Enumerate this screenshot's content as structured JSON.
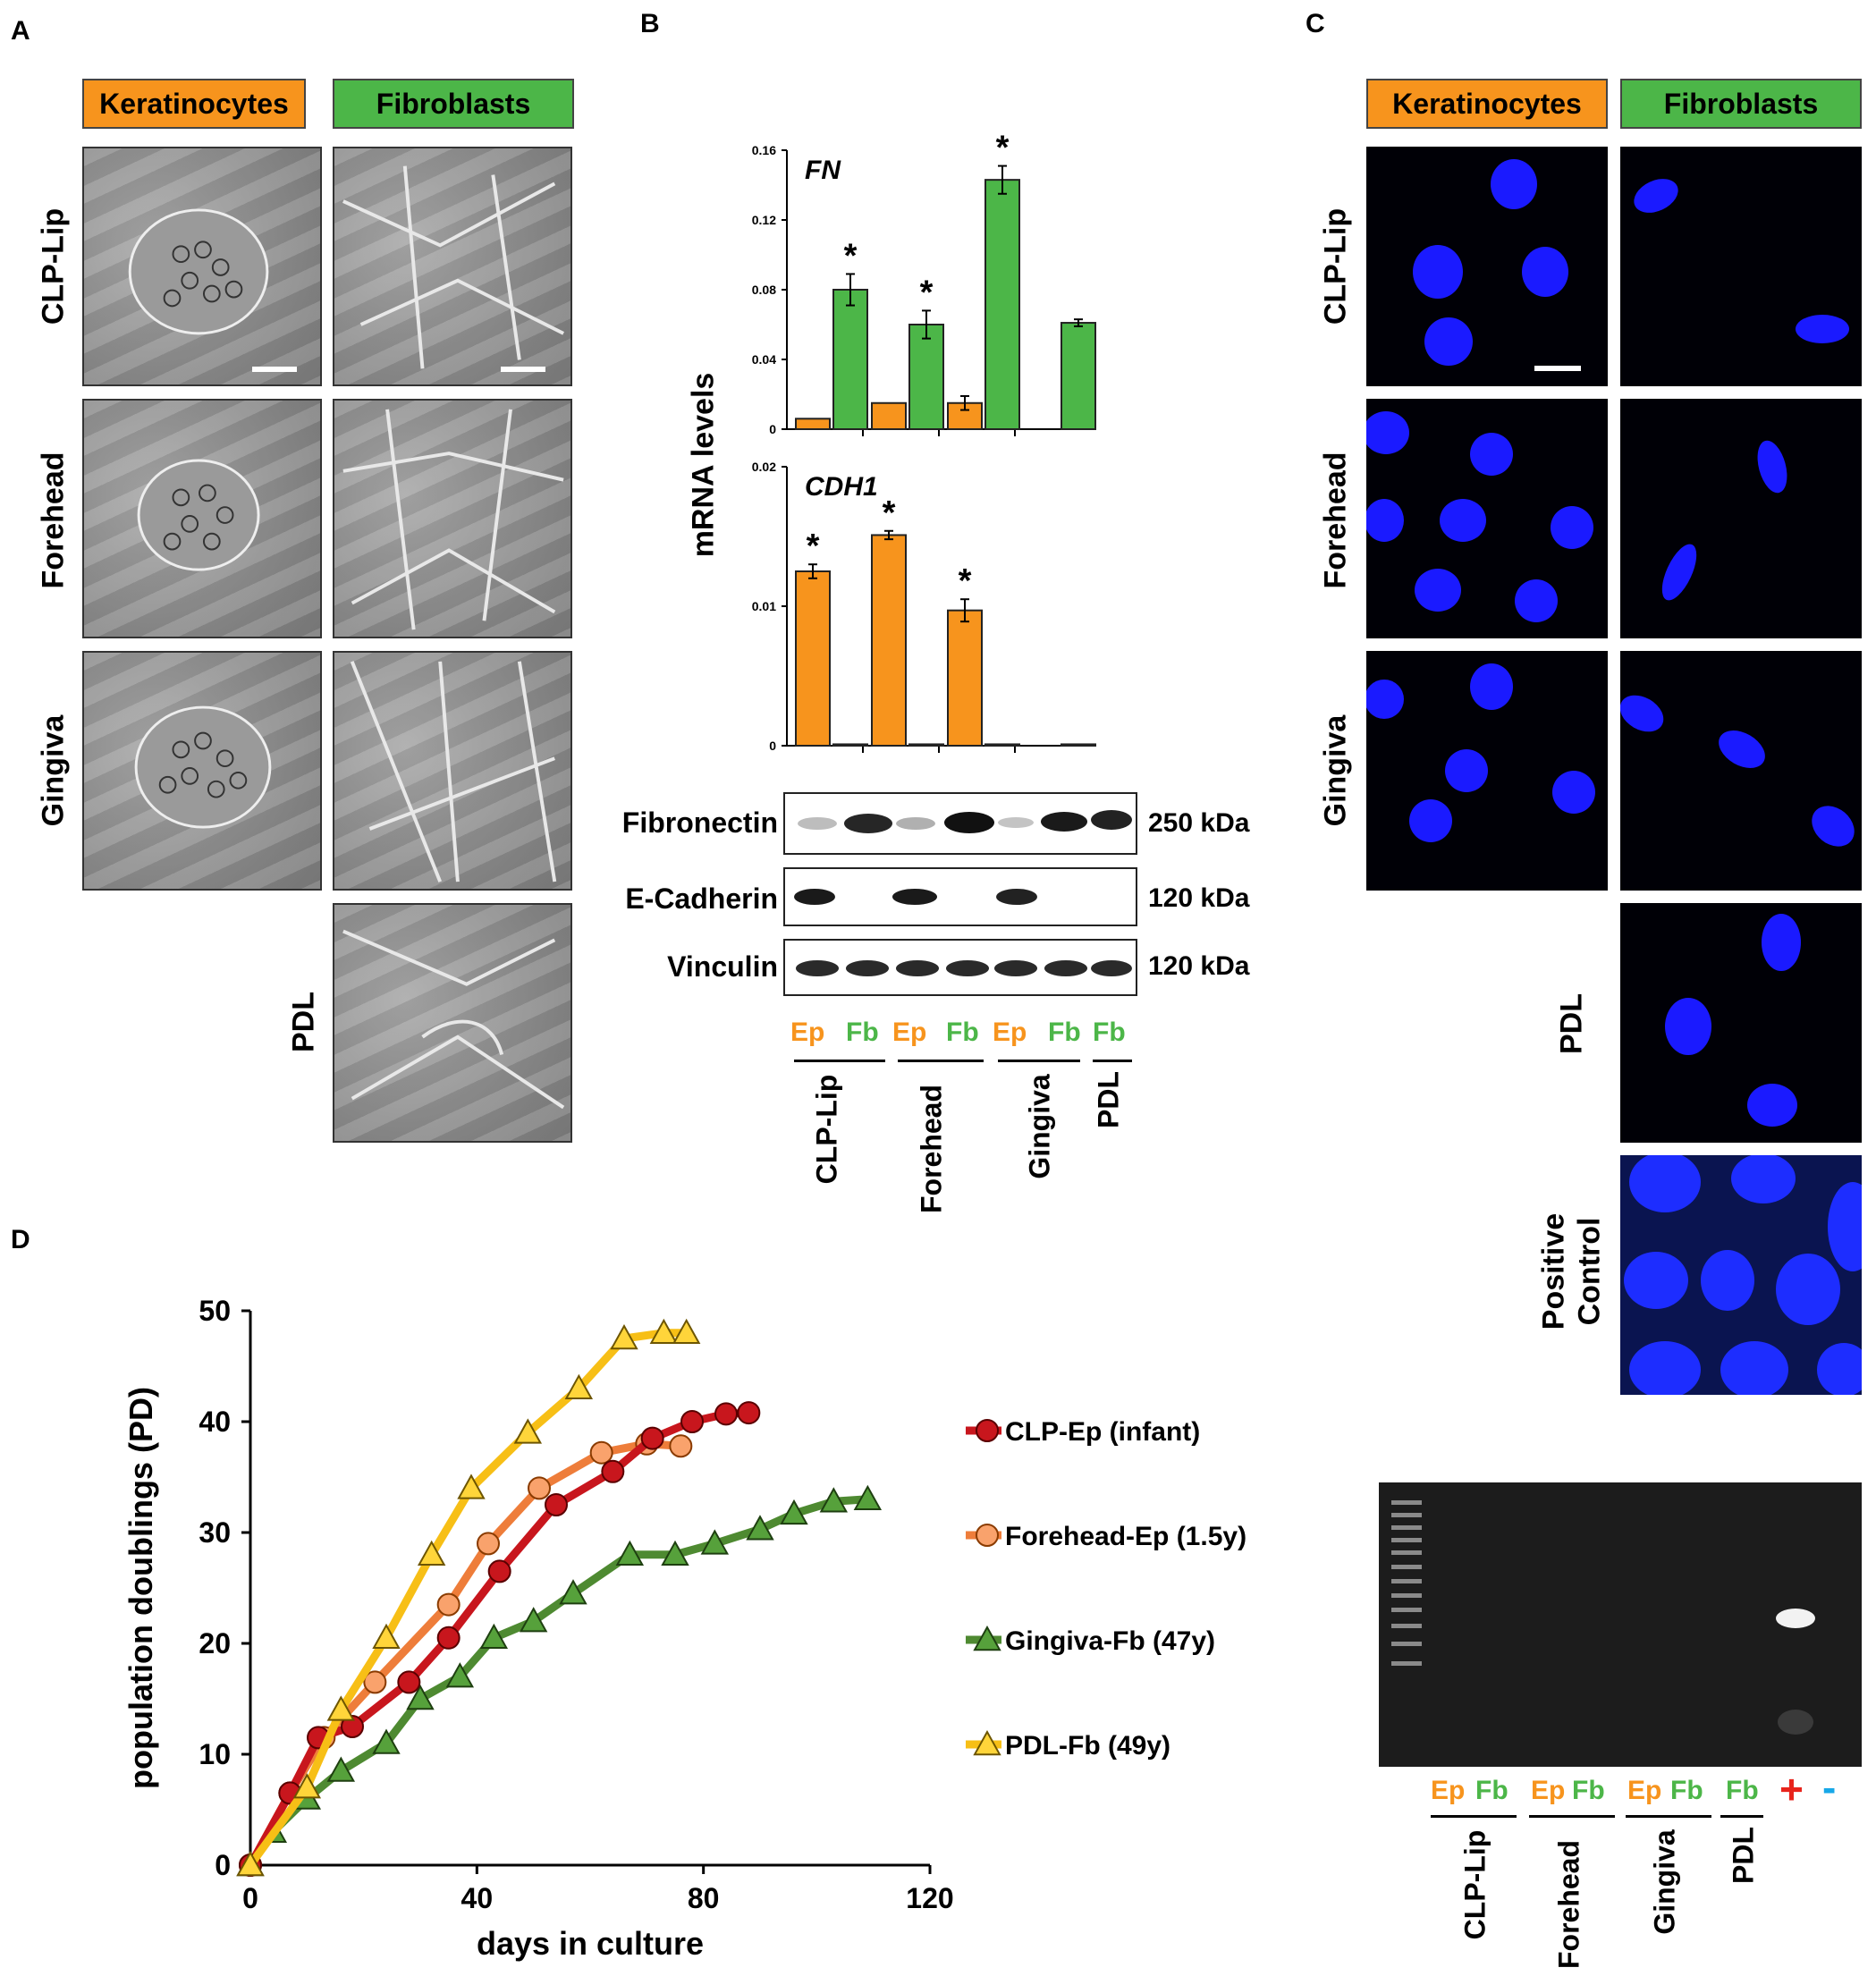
{
  "panel_letters": {
    "a": "A",
    "b": "B",
    "c": "C",
    "d": "D"
  },
  "headers": {
    "keratinocytes": "Keratinocytes",
    "fibroblasts": "Fibroblasts"
  },
  "row_labels": {
    "clp_lip": "CLP-Lip",
    "forehead": "Forehead",
    "gingiva": "Gingiva",
    "pdl": "PDL",
    "positive_control_1": "Positive",
    "positive_control_2": "Control"
  },
  "panel_b": {
    "ylabel": "mRNA levels",
    "blot": {
      "fibronectin": "Fibronectin",
      "ecadherin": "E-Cadherin",
      "vinculin": "Vinculin",
      "kda_250": "250 kDa",
      "kda_120a": "120 kDa",
      "kda_120b": "120 kDa"
    },
    "lanes": {
      "ep": "Ep",
      "fb": "Fb"
    },
    "groups": {
      "clp_lip": "CLP-Lip",
      "forehead": "Forehead",
      "gingiva": "Gingiva",
      "pdl": "PDL"
    }
  },
  "panel_c_gel": {
    "lanes": {
      "ep": "Ep",
      "fb": "Fb",
      "plus": "+",
      "minus": "-"
    },
    "groups": {
      "clp_lip": "CLP-Lip",
      "forehead": "Forehead",
      "gingiva": "Gingiva",
      "pdl": "PDL"
    }
  },
  "colors": {
    "keratinocytes": "#f7941d",
    "fibroblasts": "#4cb648",
    "clp": "#c8161d",
    "forehead": "#ee7d3a",
    "gingiva": "#4e8a31",
    "pdl": "#f7bf16"
  },
  "chart_data": [
    {
      "type": "bar",
      "gene": "FN",
      "categories": [
        "CLP-Lip",
        "Forehead",
        "Gingiva",
        "PDL"
      ],
      "series": [
        {
          "values": [
            0.006,
            0.015,
            0.015,
            null
          ],
          "errors": [
            0,
            0,
            0.004,
            0
          ]
        },
        {
          "values": [
            0.08,
            0.06,
            0.143,
            0.061
          ],
          "errors": [
            0.009,
            0.008,
            0.008,
            0.002
          ]
        }
      ],
      "significant": [
        [
          false,
          true
        ],
        [
          false,
          true
        ],
        [
          false,
          true
        ],
        [
          false,
          false
        ]
      ],
      "ylim": [
        0,
        0.16
      ],
      "yticks": [
        "0",
        "0.04",
        "0.08",
        "0.12",
        "0.16"
      ],
      "sig_marker": "*"
    },
    {
      "type": "bar",
      "gene": "CDH1",
      "categories": [
        "CLP-Lip",
        "Forehead",
        "Gingiva",
        "PDL"
      ],
      "series": [
        {
          "values": [
            0.0125,
            0.0151,
            0.0097,
            null
          ],
          "errors": [
            0.0005,
            0.0003,
            0.0008,
            0
          ]
        },
        {
          "values": [
            0.0001,
            0.0001,
            0.0001,
            0.0001
          ],
          "errors": [
            0,
            0,
            0,
            0
          ]
        }
      ],
      "significant": [
        [
          true,
          false
        ],
        [
          true,
          false
        ],
        [
          true,
          false
        ],
        [
          false,
          false
        ]
      ],
      "ylim": [
        0,
        0.02
      ],
      "yticks": [
        "0",
        "0.01",
        "0.02"
      ],
      "sig_marker": "*"
    },
    {
      "type": "line",
      "xlabel": "days in culture",
      "ylabel": "population doublings (PD)",
      "xlim": [
        0,
        120
      ],
      "ylim": [
        0,
        50
      ],
      "xticks": [
        "0",
        "40",
        "80",
        "120"
      ],
      "yticks": [
        "0",
        "10",
        "20",
        "30",
        "40",
        "50"
      ],
      "series": [
        {
          "name": "CLP-Ep (infant)",
          "marker": "circle",
          "x": [
            0,
            7,
            12,
            18,
            28,
            35,
            44,
            54,
            64,
            71,
            78,
            84,
            88
          ],
          "y": [
            0,
            6.5,
            11.5,
            12.5,
            16.5,
            20.5,
            26.5,
            32.5,
            35.5,
            38.5,
            40,
            40.7,
            40.8
          ]
        },
        {
          "name": "Forehead-Ep (1.5y)",
          "marker": "circle",
          "x": [
            0,
            7,
            13,
            22,
            35,
            42,
            51,
            62,
            70,
            76
          ],
          "y": [
            0,
            6.5,
            11.5,
            16.5,
            23.5,
            29,
            34,
            37.2,
            38,
            37.8
          ]
        },
        {
          "name": "Gingiva-Fb (47y)",
          "marker": "triangle",
          "x": [
            0,
            4,
            10,
            16,
            24,
            30,
            37,
            43,
            50,
            57,
            67,
            75,
            82,
            90,
            96,
            103,
            109
          ],
          "y": [
            0,
            3,
            6,
            8.5,
            11,
            15,
            17,
            20.5,
            22,
            24.5,
            28,
            28,
            29,
            30.3,
            31.7,
            32.8,
            33
          ]
        },
        {
          "name": "PDL-Fb (49y)",
          "marker": "triangle",
          "x": [
            0,
            10,
            16,
            24,
            32,
            39,
            49,
            58,
            66,
            73,
            77
          ],
          "y": [
            0,
            7,
            14,
            20.5,
            28,
            34,
            39,
            43,
            47.5,
            48,
            48
          ]
        }
      ]
    }
  ]
}
